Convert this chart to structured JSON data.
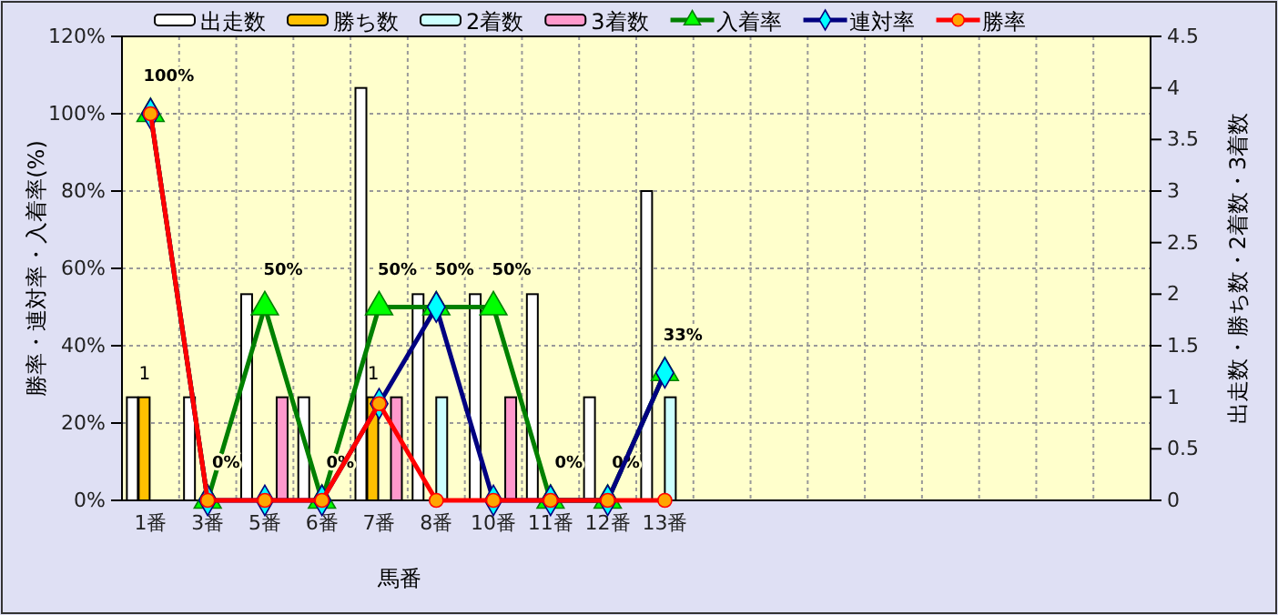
{
  "chart_data": {
    "type": "bar",
    "categories": [
      "1番",
      "3番",
      "5番",
      "6番",
      "7番",
      "8番",
      "10番",
      "11番",
      "12番",
      "13番",
      null,
      null,
      null,
      null,
      null,
      null,
      null,
      null
    ],
    "series": [
      {
        "name": "出走数",
        "axis": "y2",
        "color": "#ffffff",
        "values": [
          1,
          1,
          2,
          1,
          4,
          2,
          2,
          2,
          1,
          3,
          null,
          null,
          null,
          null,
          null,
          null,
          null,
          null
        ]
      },
      {
        "name": "勝ち数",
        "axis": "y2",
        "color": "#ffc000",
        "values": [
          1,
          0,
          0,
          0,
          1,
          0,
          0,
          0,
          0,
          0,
          null,
          null,
          null,
          null,
          null,
          null,
          null,
          null
        ],
        "value_labels": [
          "1",
          null,
          null,
          null,
          "1",
          null,
          null,
          null,
          null,
          null,
          null,
          null,
          null,
          null,
          null,
          null,
          null,
          null
        ]
      },
      {
        "name": "2着数",
        "axis": "y2",
        "color": "#ccffff",
        "values": [
          0,
          0,
          0,
          0,
          0,
          1,
          0,
          0,
          0,
          1,
          null,
          null,
          null,
          null,
          null,
          null,
          null,
          null
        ]
      },
      {
        "name": "3着数",
        "axis": "y2",
        "color": "#ff99cc",
        "values": [
          0,
          0,
          1,
          0,
          1,
          0,
          1,
          0,
          0,
          0,
          null,
          null,
          null,
          null,
          null,
          null,
          null,
          null
        ]
      },
      {
        "name": "入着率",
        "type": "line",
        "color": "#008000",
        "marker": "triangle",
        "values": [
          100,
          0,
          50,
          0,
          50,
          50,
          50,
          0,
          0,
          33,
          null,
          null,
          null,
          null,
          null,
          null,
          null,
          null
        ],
        "value_labels": [
          "100%",
          "0%",
          "50%",
          "0%",
          "50%",
          "50%",
          "50%",
          "0%",
          "0%",
          "33%",
          null,
          null,
          null,
          null,
          null,
          null,
          null,
          null
        ]
      },
      {
        "name": "連対率",
        "type": "line",
        "color": "#000080",
        "marker": "diamond",
        "values": [
          100,
          0,
          0,
          0,
          25,
          50,
          0,
          0,
          0,
          33,
          null,
          null,
          null,
          null,
          null,
          null,
          null,
          null
        ]
      },
      {
        "name": "勝率",
        "type": "line",
        "color": "#ff0000",
        "marker": "circle",
        "values": [
          100,
          0,
          0,
          0,
          25,
          0,
          0,
          0,
          0,
          0,
          null,
          null,
          null,
          null,
          null,
          null,
          null,
          null
        ]
      }
    ],
    "xlabel": "馬番",
    "ylabel": "勝率・連対率・入着率(%)",
    "y2label": "出走数・勝ち数・2着数・3着数",
    "ylim": [
      0,
      120
    ],
    "yticks": [
      {
        "value": 0,
        "label": "0%"
      },
      {
        "value": 20,
        "label": "20%"
      },
      {
        "value": 40,
        "label": "40%"
      },
      {
        "value": 60,
        "label": "60%"
      },
      {
        "value": 80,
        "label": "80%"
      },
      {
        "value": 100,
        "label": "100%"
      },
      {
        "value": 120,
        "label": "120%"
      }
    ],
    "y2lim": [
      0,
      4.5
    ],
    "y2ticks": [
      0,
      0.5,
      1,
      1.5,
      2,
      2.5,
      3,
      3.5,
      4,
      4.5
    ],
    "grid": true,
    "legend": "top"
  }
}
